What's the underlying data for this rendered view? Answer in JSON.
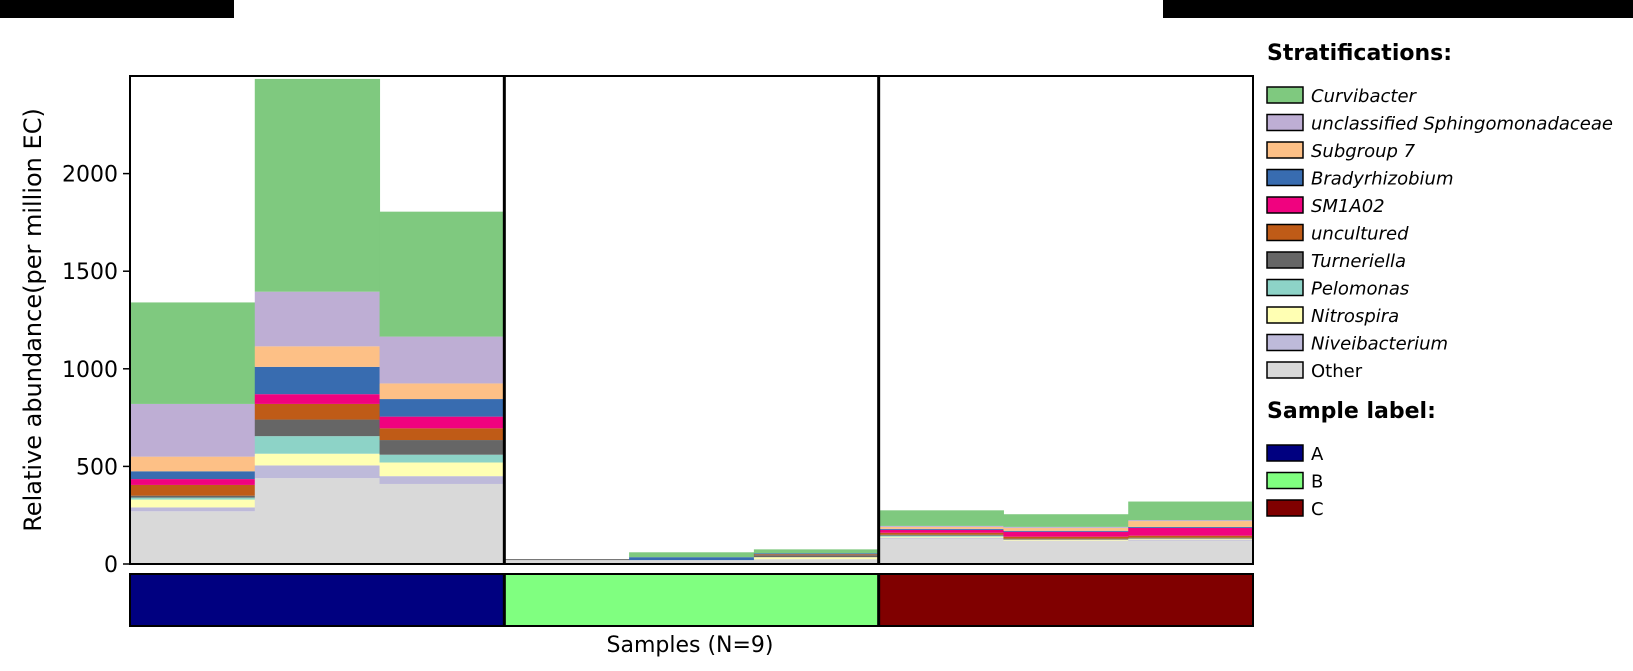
{
  "chart_data": {
    "type": "bar",
    "subtype": "stacked",
    "xlabel": "Samples (N=9)",
    "ylabel": "Relative abundance(per million EC)",
    "ylim": [
      0,
      2500
    ],
    "yticks": [
      0,
      500,
      1000,
      1500,
      2000
    ],
    "grid": false,
    "legend_position": "right",
    "stratifications_title": "Stratifications:",
    "sample_label_title": "Sample label:",
    "series": [
      {
        "name": "Curvibacter",
        "italic": true,
        "color": "#7fc97f",
        "values": [
          520,
          1090,
          640,
          0,
          25,
          20,
          80,
          65,
          95
        ]
      },
      {
        "name": "unclassified Sphingomonadaceae",
        "italic": true,
        "color": "#beaed4",
        "values": [
          270,
          280,
          240,
          0,
          0,
          0,
          5,
          5,
          5
        ]
      },
      {
        "name": "Subgroup 7",
        "italic": true,
        "color": "#fdc086",
        "values": [
          75,
          105,
          80,
          0,
          0,
          0,
          10,
          15,
          30
        ]
      },
      {
        "name": "Bradyrhizobium",
        "italic": true,
        "color": "#386cb0",
        "values": [
          40,
          140,
          90,
          0,
          15,
          5,
          5,
          5,
          5
        ]
      },
      {
        "name": "SM1A02",
        "italic": true,
        "color": "#f0027f",
        "values": [
          30,
          50,
          60,
          0,
          0,
          0,
          15,
          25,
          40
        ]
      },
      {
        "name": "uncultured",
        "italic": true,
        "color": "#bf5b17",
        "values": [
          55,
          80,
          60,
          0,
          0,
          5,
          10,
          10,
          10
        ]
      },
      {
        "name": "Turneriella",
        "italic": true,
        "color": "#666666",
        "values": [
          10,
          85,
          75,
          5,
          0,
          10,
          5,
          5,
          5
        ]
      },
      {
        "name": "Pelomonas",
        "italic": true,
        "color": "#8dd3c7",
        "values": [
          10,
          90,
          40,
          0,
          0,
          0,
          5,
          0,
          0
        ]
      },
      {
        "name": "Nitrospira",
        "italic": true,
        "color": "#ffffb3",
        "values": [
          40,
          60,
          70,
          0,
          0,
          10,
          5,
          5,
          5
        ]
      },
      {
        "name": "Niveibacterium",
        "italic": true,
        "color": "#bebada",
        "values": [
          20,
          65,
          40,
          0,
          0,
          0,
          5,
          0,
          5
        ]
      },
      {
        "name": "Other",
        "italic": false,
        "color": "#d9d9d9",
        "values": [
          270,
          440,
          410,
          20,
          20,
          25,
          130,
          120,
          120
        ]
      }
    ],
    "sample_groups": [
      {
        "label": "A",
        "color": "#000080",
        "count": 3
      },
      {
        "label": "B",
        "color": "#80ff80",
        "count": 3
      },
      {
        "label": "C",
        "color": "#800000",
        "count": 3
      }
    ]
  }
}
